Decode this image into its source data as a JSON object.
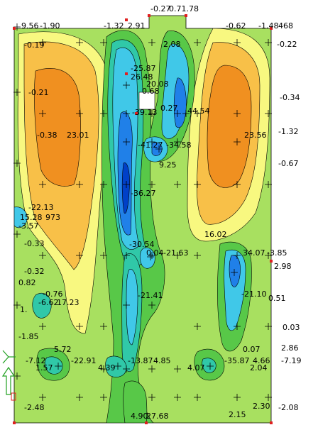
{
  "plot": {
    "colors": {
      "background": "#ffffff",
      "band_light_green": "#a8e060",
      "band_yellow": "#f8f880",
      "band_light_orange": "#f8c048",
      "band_orange": "#f09020",
      "band_green": "#58c848",
      "band_teal": "#30c8a8",
      "band_cyan": "#40c8e8",
      "band_blue": "#2080e8",
      "band_dark_blue": "#0040c8",
      "support_marker": "#e02020",
      "axis_marker": "#20a020"
    },
    "labels": [
      {
        "text": "-0.27",
        "id": "top-center-a"
      },
      {
        "text": "0.71.78",
        "id": "top-center-b"
      },
      {
        "text": "9.56",
        "id": "top-left-a"
      },
      {
        "text": "-1.90",
        "id": "top-left-b"
      },
      {
        "text": "-1.32",
        "id": "top-mid-a"
      },
      {
        "text": "2.91",
        "id": "top-mid-b"
      },
      {
        "text": "-0.62",
        "id": "top-right-a"
      },
      {
        "text": "-1.48",
        "id": "top-right-b"
      },
      {
        "text": "468",
        "id": "top-right-c"
      },
      {
        "text": "-0.22",
        "id": "right-1"
      },
      {
        "text": "-0.19",
        "id": "left-1"
      },
      {
        "text": "2.08",
        "id": "center-1"
      },
      {
        "text": "-25.87",
        "id": "center-2"
      },
      {
        "text": "26.48",
        "id": "center-3"
      },
      {
        "text": "20.08",
        "id": "center-4"
      },
      {
        "text": "0.68",
        "id": "center-5"
      },
      {
        "text": "-0.21",
        "id": "left-2"
      },
      {
        "text": "-0.34",
        "id": "right-2"
      },
      {
        "text": "-39.13",
        "id": "center-6"
      },
      {
        "text": "0.27",
        "id": "center-7"
      },
      {
        "text": "44.54",
        "id": "center-8"
      },
      {
        "text": "-0.38",
        "id": "left-3"
      },
      {
        "text": "23.01",
        "id": "left-4"
      },
      {
        "text": "23.56",
        "id": "right-3"
      },
      {
        "text": "-1.32",
        "id": "right-4"
      },
      {
        "text": "-41.27",
        "id": "center-9"
      },
      {
        "text": "-34.58",
        "id": "center-10"
      },
      {
        "text": "9.25",
        "id": "center-11"
      },
      {
        "text": "-0.67",
        "id": "right-5"
      },
      {
        "text": "-36.27",
        "id": "center-12"
      },
      {
        "text": "-22.13",
        "id": "left-5"
      },
      {
        "text": "15.28",
        "id": "left-6"
      },
      {
        "text": "973",
        "id": "left-7"
      },
      {
        "text": "-3.57",
        "id": "left-8"
      },
      {
        "text": "16.02",
        "id": "center-13"
      },
      {
        "text": "-30.54",
        "id": "center-14"
      },
      {
        "text": "-0.33",
        "id": "left-9"
      },
      {
        "text": "0.04",
        "id": "center-15"
      },
      {
        "text": "-21.63",
        "id": "center-16"
      },
      {
        "text": "34.07",
        "id": "right-6"
      },
      {
        "text": "-3.85",
        "id": "right-7"
      },
      {
        "text": "2.98",
        "id": "right-8"
      },
      {
        "text": "-0.32",
        "id": "left-10"
      },
      {
        "text": "0.82",
        "id": "left-11"
      },
      {
        "text": "-0.76",
        "id": "left-12"
      },
      {
        "text": "-21.41",
        "id": "center-17"
      },
      {
        "text": "-21.10",
        "id": "right-9"
      },
      {
        "text": "0.51",
        "id": "right-10"
      },
      {
        "text": "-6.62",
        "id": "left-13"
      },
      {
        "text": "17.23",
        "id": "left-14"
      },
      {
        "text": "1.",
        "id": "left-15"
      },
      {
        "text": "0.03",
        "id": "right-11"
      },
      {
        "text": "-1.85",
        "id": "left-16"
      },
      {
        "text": "2.86",
        "id": "right-12"
      },
      {
        "text": "5.72",
        "id": "bottom-1"
      },
      {
        "text": "-7.12",
        "id": "bottom-2"
      },
      {
        "text": "-22.91",
        "id": "bottom-3"
      },
      {
        "text": "0.07",
        "id": "right-13"
      },
      {
        "text": "-13.87",
        "id": "bottom-4"
      },
      {
        "text": "4.85",
        "id": "bottom-5"
      },
      {
        "text": "-35.87",
        "id": "bottom-6"
      },
      {
        "text": "4.66",
        "id": "bottom-7"
      },
      {
        "text": "-7.19",
        "id": "right-14"
      },
      {
        "text": "1.57",
        "id": "bottom-8"
      },
      {
        "text": "4.39",
        "id": "bottom-9"
      },
      {
        "text": "4.07",
        "id": "bottom-10"
      },
      {
        "text": "2.04",
        "id": "right-15"
      },
      {
        "text": "-2.48",
        "id": "bottom-left"
      },
      {
        "text": "2.30",
        "id": "bottom-right-a"
      },
      {
        "text": "-2.08",
        "id": "bottom-right-b"
      },
      {
        "text": "2.15",
        "id": "bottom-right-c"
      },
      {
        "text": "4.90",
        "id": "bottom-center-a"
      },
      {
        "text": "27.68",
        "id": "bottom-center-b"
      }
    ]
  }
}
